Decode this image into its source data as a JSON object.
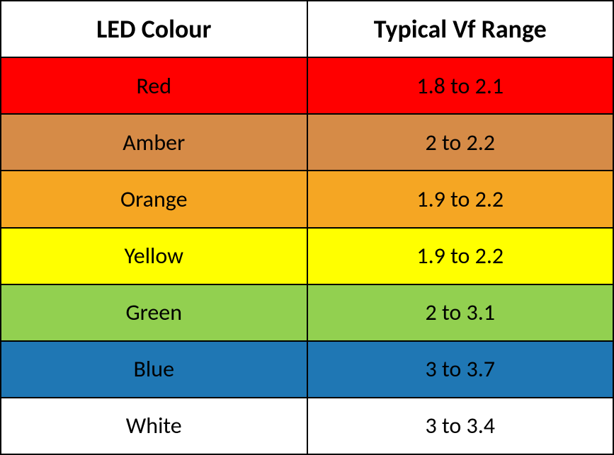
{
  "table": {
    "type": "table",
    "columns": [
      "LED Colour",
      "Typical Vf Range"
    ],
    "header_fontsize": 36,
    "header_fontweight": "bold",
    "header_background": "#ffffff",
    "cell_fontsize": 32,
    "border_color": "#000000",
    "border_width": 2,
    "rows": [
      {
        "colour": "Red",
        "vf_range": "1.8 to 2.1",
        "background": "#ff0000"
      },
      {
        "colour": "Amber",
        "vf_range": "2 to 2.2",
        "background": "#d68b47"
      },
      {
        "colour": "Orange",
        "vf_range": "1.9 to 2.2",
        "background": "#f5a623"
      },
      {
        "colour": "Yellow",
        "vf_range": "1.9 to 2.2",
        "background": "#ffff00"
      },
      {
        "colour": "Green",
        "vf_range": "2 to 3.1",
        "background": "#92d050"
      },
      {
        "colour": "Blue",
        "vf_range": "3 to 3.7",
        "background": "#1f77b4"
      },
      {
        "colour": "White",
        "vf_range": "3 to 3.4",
        "background": "#ffffff"
      }
    ]
  }
}
